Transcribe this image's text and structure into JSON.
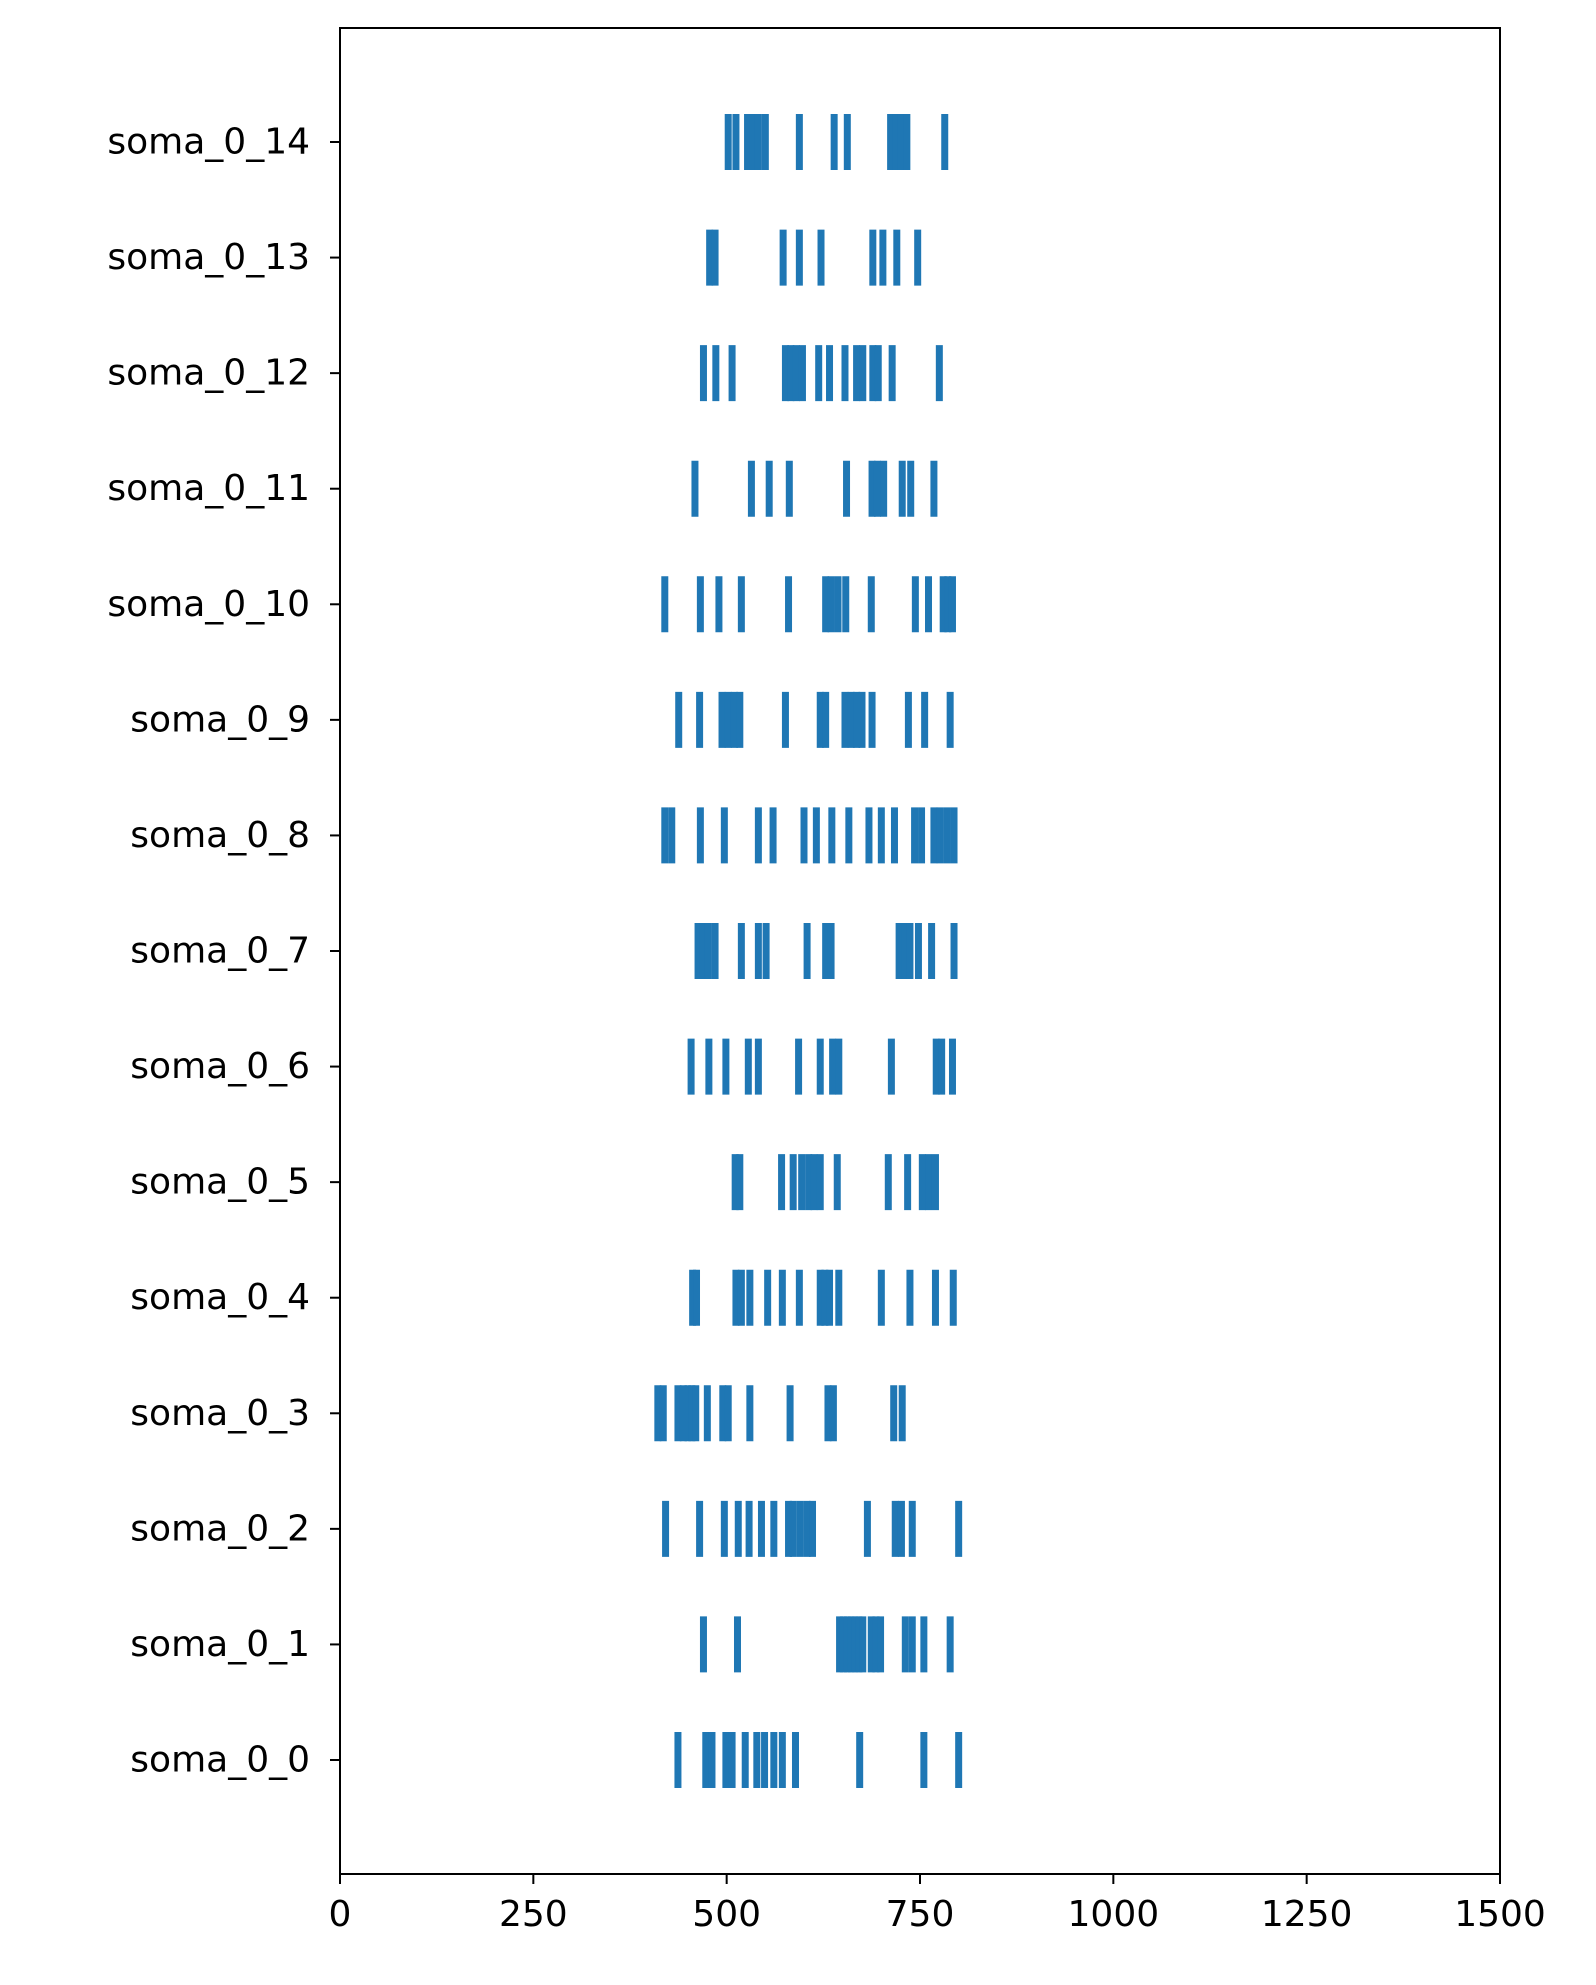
{
  "chart_data": {
    "type": "scatter",
    "title": "",
    "xlabel": "",
    "ylabel": "",
    "xlim": [
      0,
      1500
    ],
    "x_ticks": [
      0,
      250,
      500,
      750,
      1000,
      1250,
      1500
    ],
    "x_tick_labels": [
      "0",
      "250",
      "500",
      "750",
      "1000",
      "1250",
      "1500"
    ],
    "grid": false,
    "legend": "none",
    "series_color": "#1f77b4",
    "series": [
      {
        "label": "soma_0_0",
        "spikes": [
          437,
          473,
          481,
          499,
          507,
          524,
          539,
          549,
          561,
          572,
          589,
          672,
          755,
          800
        ]
      },
      {
        "label": "soma_0_1",
        "spikes": [
          470,
          514,
          646,
          651,
          656,
          661,
          666,
          671,
          676,
          687,
          693,
          699,
          731,
          740,
          755,
          789
        ]
      },
      {
        "label": "soma_0_2",
        "spikes": [
          421,
          465,
          497,
          515,
          529,
          545,
          561,
          580,
          586,
          595,
          604,
          611,
          682,
          718,
          726,
          740,
          800
        ]
      },
      {
        "label": "soma_0_3",
        "spikes": [
          411,
          418,
          437,
          444,
          450,
          455,
          460,
          475,
          495,
          502,
          530,
          582,
          631,
          638,
          716,
          727
        ]
      },
      {
        "label": "soma_0_4",
        "spikes": [
          456,
          461,
          512,
          519,
          530,
          553,
          572,
          594,
          621,
          627,
          633,
          645,
          700,
          737,
          770,
          793
        ]
      },
      {
        "label": "soma_0_5",
        "spikes": [
          511,
          517,
          571,
          586,
          597,
          606,
          613,
          621,
          643,
          709,
          734,
          753,
          761,
          770
        ]
      },
      {
        "label": "soma_0_6",
        "spikes": [
          454,
          477,
          499,
          528,
          541,
          593,
          621,
          637,
          645,
          713,
          771,
          778,
          792
        ]
      },
      {
        "label": "soma_0_7",
        "spikes": [
          463,
          470,
          476,
          485,
          519,
          541,
          551,
          604,
          628,
          635,
          723,
          730,
          737,
          748,
          765,
          794
        ]
      },
      {
        "label": "soma_0_8",
        "spikes": [
          420,
          429,
          466,
          497,
          541,
          560,
          600,
          616,
          636,
          658,
          684,
          700,
          717,
          743,
          752,
          768,
          776,
          785,
          794
        ]
      },
      {
        "label": "soma_0_9",
        "spikes": [
          438,
          465,
          494,
          502,
          510,
          517,
          576,
          621,
          628,
          653,
          661,
          668,
          675,
          688,
          735,
          756,
          789
        ]
      },
      {
        "label": "soma_0_10",
        "spikes": [
          420,
          466,
          490,
          519,
          580,
          628,
          635,
          644,
          654,
          687,
          744,
          761,
          780,
          786,
          792
        ]
      },
      {
        "label": "soma_0_11",
        "spikes": [
          459,
          532,
          555,
          581,
          655,
          688,
          695,
          703,
          727,
          738,
          768
        ]
      },
      {
        "label": "soma_0_12",
        "spikes": [
          470,
          486,
          507,
          576,
          583,
          590,
          598,
          619,
          633,
          653,
          668,
          676,
          689,
          696,
          714,
          775
        ]
      },
      {
        "label": "soma_0_13",
        "spikes": [
          478,
          485,
          573,
          594,
          622,
          689,
          702,
          720,
          747
        ]
      },
      {
        "label": "soma_0_14",
        "spikes": [
          502,
          512,
          527,
          534,
          541,
          550,
          594,
          639,
          656,
          712,
          719,
          726,
          733,
          782
        ]
      }
    ]
  }
}
